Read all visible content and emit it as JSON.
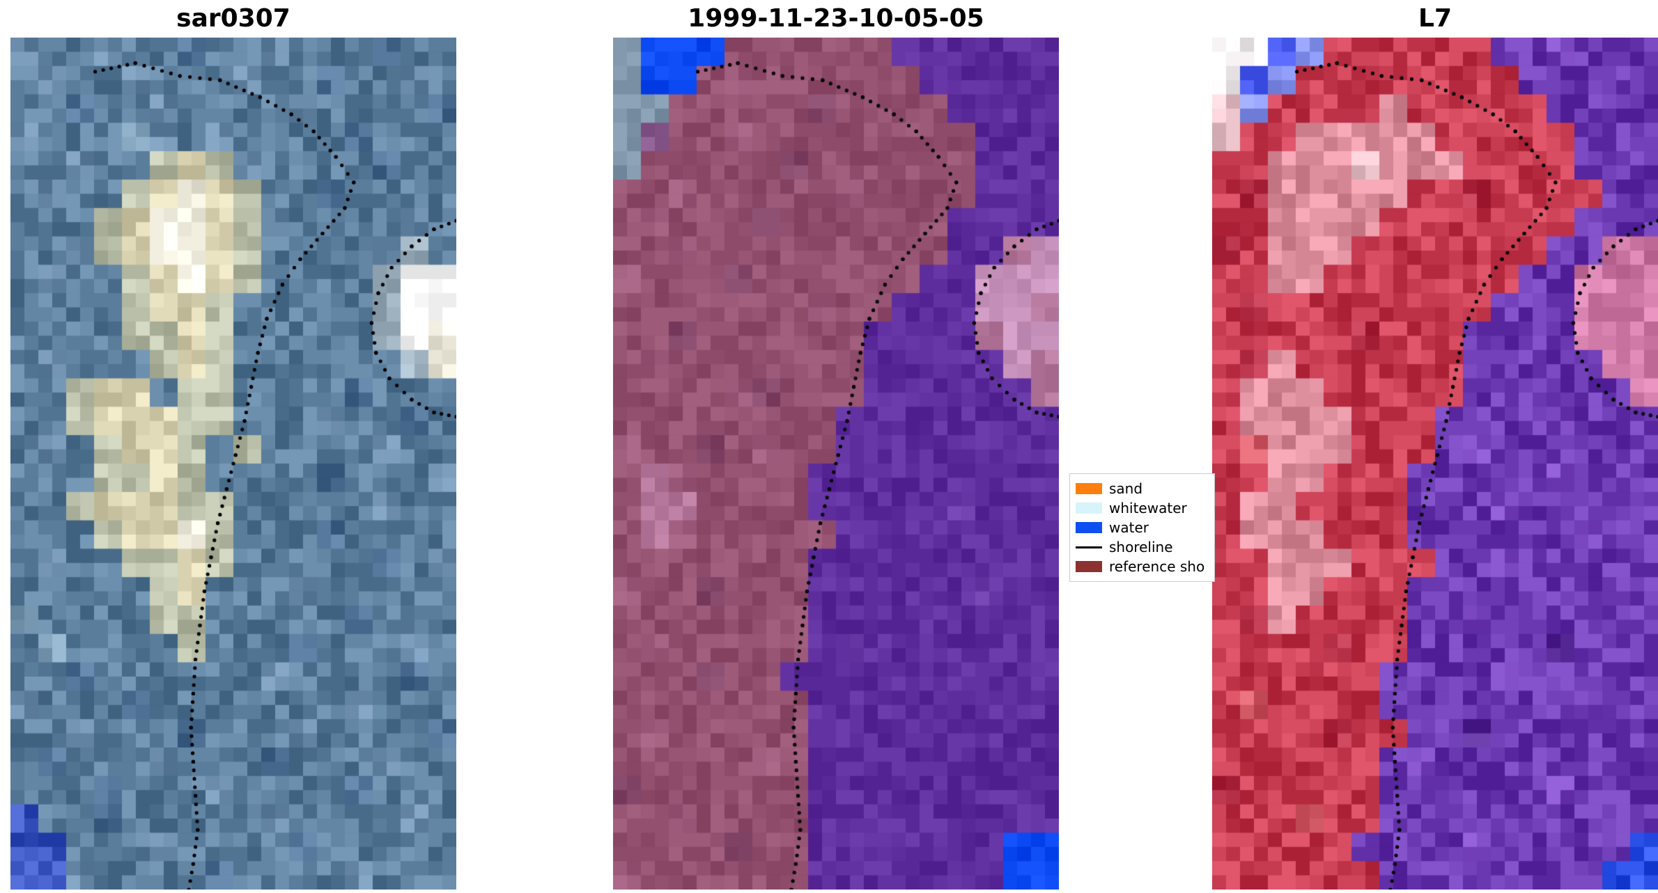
{
  "figure": {
    "background": "#ffffff",
    "shoreline_dot_color": "#000000"
  },
  "panels": [
    {
      "title": "sar0307",
      "noise": 9,
      "seed": 11,
      "palette": {
        "a": "#5a7d9c",
        "b": "#6b8cab",
        "c": "#4d7094",
        "d": "#7fa0b8",
        "e": "#b9bfa8",
        "f": "#d9d2b0",
        "g": "#f2efe0",
        "h": "#ffffff",
        "i": "#47618f",
        "j": "#3a55c0",
        "k": "#9fb2c0"
      },
      "rows": [
        "baabaacaabaaacaa",
        "abaabaaabaacaaba",
        "aacaabaaaabaaaac",
        "baaadbabaaaacaaa",
        "aabaaefebaaaacaa",
        "abaaefgfeaacaaaa",
        "aaaefggfebaaaaba",
        "aabefggfeaaaabka",
        "abaaefgfeaaaakhh",
        "aaaaeffeaaaaakhh",
        "aaaaeefeaaaaakhg",
        "abaaaefeaaaaaakg",
        "aaeffaeeaaaacaaa",
        "aaefffeeaaabaaca",
        "abaeffeaeaaaabaa",
        "aaaeefeaaaacaaab",
        "aaefffeeaaaaabaa",
        "aaaeffgeaaacaaaa",
        "abaaeefeaaaaacab",
        "aaaaaefaaabaaaaa",
        "daaaaeeaaaaacaaa",
        "adaaaaeaaacaaaba",
        "aacaaaaaabaaaaca",
        "baaacaaaaaaabaaa",
        "aabaaacaaabaaaac",
        "acaaabaaacaaabaa",
        "aaacaaabaaaacaaa",
        "jaacaaaaabaaaaba",
        "jjaaabaaaacaaaaa",
        "jjbaaaacaaaabaaa"
      ]
    },
    {
      "title": "1999-11-23-10-05-05",
      "noise": 5,
      "seed": 23,
      "palette": {
        "m": "#93506f",
        "n": "#9e5a7a",
        "o": "#84476a",
        "p": "#b5789c",
        "q": "#c894bd",
        "w": "#5e2d9d",
        "v": "#6a3aa8",
        "u": "#0b49f2",
        "s": "#7e95a9",
        "t": "#8a5b8f"
      },
      "rows": [
        "suuummmmmmwwwwww",
        "suumnmmmmmmwwwww",
        "ssmmmmmommmmwwww",
        "stmmnmmmmmmmmwww",
        "smmmmmommmmmmwww",
        "mmnmmmmmnmmmmwww",
        "mnmmmommmmmmwwww",
        "mmnmmmmmmmmmwwpq",
        "nmmmommmmmmwwqqq",
        "mmmmmmmnmmwwwqqp",
        "mmommmmmmwwwwpqq",
        "mnmmmmmmmwwwwwqp",
        "mmmmnommmwwwwwwp",
        "mmmmmmmmwwwwwwww",
        "nmmomnmmwwwwwwww",
        "mpnmmmmwwwwwwwww",
        "mppmmmmwwwwwvwww",
        "mpnmmmmmwwwwwwww",
        "mmmmmmmwwwwwwwww",
        "nmmommmwwwwwwvww",
        "mmmmmmmwwwwwwwww",
        "mnmmmmmwvwwwwwww",
        "mmmommwwwwwwwwww",
        "mmmmmmmwwwwwwwww",
        "mnmmmmmwwwwwwwww",
        "mmmmmnmwwwwwwwww",
        "ommmmmmwwwwwwwww",
        "mmnmmmmwwwwwwwww",
        "mmmmommwwwwwwwuu",
        "nmmmmmmwwwwwwwuu"
      ]
    },
    {
      "title": "L7",
      "noise": 9,
      "seed": 37,
      "palette": {
        "A": "#c63b50",
        "B": "#d15a66",
        "C": "#b52f46",
        "D": "#de8f9e",
        "E": "#ecc6cc",
        "F": "#f7f3f4",
        "G": "#4a5bf0",
        "H": "#8a97f2",
        "P": "#6a38b0",
        "Q": "#7a47c0",
        "R": "#5c2f9c",
        "S": "#d07aa8",
        "T": "#2a50e8"
      },
      "rows": [
        "FFGHAAAAAAPPQPPP",
        "FGHAAAAAAAAPPPPP",
        "EHAAAADAAAAAPPPP",
        "EAADDDDDAAAAAPPP",
        "AADDDEDDDAAAAPPP",
        "ACDDDDDAACAAAAPP",
        "AADDDDAAAAAAAPPP",
        "CADDDAAAAAAAPPSS",
        "AADDAAAAAAAPPSSS",
        "ACAAAAAAAAPPPSSS",
        "AAAAACAAAPPPPSSS",
        "ACDAAAAAAPPPPPSS",
        "ADDDAAAAAPPPPPPS",
        "ADDDDAAAPPPPQPPP",
        "ABDDDAAAPQPPPPPP",
        "AADDAAAPPPPPQPPP",
        "ADDAAAAPPPQPPPPP",
        "ADDDAAAPPPPPPQPP",
        "AADDDAAAPPQPPPPP",
        "AADDAAAPPPPPPPQP",
        "ACDAAAAPPQPPPPPP",
        "AAAACAAPPPPPRPPP",
        "AAAAAAPPPPQPPPPP",
        "ABAAAAPPPPPPPQPP",
        "AAAACAAPPRPPPPPP",
        "AAAAAAPQPPPPPPPP",
        "CAAAAAPPPPPPQPPP",
        "AAABAAPPPPPPPPPP",
        "AAAAAPPPPQPPPPPT",
        "AAAAAAPPPPPPPPTT"
      ]
    }
  ],
  "shoreline": {
    "color": "#000000",
    "main": [
      [
        0.19,
        0.04
      ],
      [
        0.28,
        0.03
      ],
      [
        0.38,
        0.045
      ],
      [
        0.47,
        0.05
      ],
      [
        0.56,
        0.07
      ],
      [
        0.63,
        0.09
      ],
      [
        0.68,
        0.11
      ],
      [
        0.73,
        0.14
      ],
      [
        0.77,
        0.17
      ],
      [
        0.75,
        0.2
      ],
      [
        0.7,
        0.23
      ],
      [
        0.65,
        0.26
      ],
      [
        0.61,
        0.29
      ],
      [
        0.575,
        0.33
      ],
      [
        0.555,
        0.37
      ],
      [
        0.54,
        0.41
      ],
      [
        0.525,
        0.45
      ],
      [
        0.505,
        0.49
      ],
      [
        0.485,
        0.53
      ],
      [
        0.465,
        0.57
      ],
      [
        0.45,
        0.61
      ],
      [
        0.435,
        0.65
      ],
      [
        0.425,
        0.69
      ],
      [
        0.415,
        0.73
      ],
      [
        0.41,
        0.77
      ],
      [
        0.405,
        0.81
      ],
      [
        0.41,
        0.85
      ],
      [
        0.415,
        0.89
      ],
      [
        0.42,
        0.93
      ],
      [
        0.41,
        0.97
      ],
      [
        0.4,
        1.0
      ]
    ],
    "secondary": [
      [
        1.0,
        0.215
      ],
      [
        0.95,
        0.225
      ],
      [
        0.9,
        0.245
      ],
      [
        0.855,
        0.27
      ],
      [
        0.825,
        0.3
      ],
      [
        0.81,
        0.335
      ],
      [
        0.82,
        0.37
      ],
      [
        0.85,
        0.4
      ],
      [
        0.9,
        0.425
      ],
      [
        0.95,
        0.44
      ],
      [
        1.0,
        0.445
      ]
    ]
  },
  "legend": {
    "items": [
      {
        "label": "sand",
        "color": "#ff7f0e",
        "type": "patch"
      },
      {
        "label": "whitewater",
        "color": "#d8f4fb",
        "type": "patch"
      },
      {
        "label": "water",
        "color": "#0d4ff0",
        "type": "patch"
      },
      {
        "label": "shoreline",
        "color": "#000000",
        "type": "line"
      },
      {
        "label": "reference sho",
        "color": "#8c3030",
        "type": "patch"
      }
    ]
  },
  "chart_data": {
    "type": "heatmap",
    "subplots": [
      {
        "title": "sar0307",
        "content": "SAR image of coast: blue-gray sea/land texture, bright cream sand band curving from top-center downward, bright white whitewater blob at right-center edge, small blue patch bottom-left, dotted shoreline overlay"
      },
      {
        "title": "1999-11-23-10-05-05",
        "content": "classified optical image: mauve/rose land on left, flat indigo-purple water mask on right, bright blue water patch top-left and bottom-right, pink sand blob at right-center, gray-blue top-left corner, dotted shoreline overlay"
      },
      {
        "title": "L7",
        "content": "Landsat 7 false-color image: red land on left with pink highlight patches, textured purple water on right, white/blue cloud corner top-left, pink sand blob right-center, small blue pixel bottom-right, dotted shoreline overlay"
      }
    ],
    "legend_entries": [
      "sand",
      "whitewater",
      "water",
      "shoreline",
      "reference sho"
    ],
    "legend_position": "center right, between second and third subplot",
    "grid": false,
    "note": "pixel grids for each subplot are stored in panels[].rows with panels[].palette color maps; shoreline dotted path in normalized coords in shoreline.main and shoreline.secondary"
  }
}
